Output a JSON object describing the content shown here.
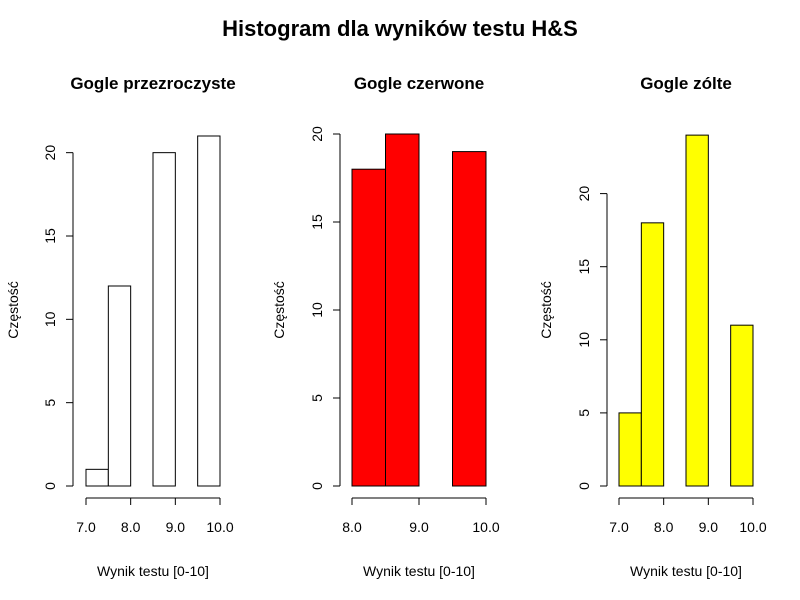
{
  "title": "Histogram dla wyników testu H&S",
  "chart_data": [
    {
      "type": "bar",
      "title": "Gogle przezroczyste",
      "xlabel": "Wynik testu [0-10]",
      "ylabel": "Częstość",
      "fill": "#ffffff",
      "bins": [
        [
          7.0,
          7.5
        ],
        [
          7.5,
          8.0
        ],
        [
          8.0,
          8.5
        ],
        [
          8.5,
          9.0
        ],
        [
          9.0,
          9.5
        ],
        [
          9.5,
          10.0
        ]
      ],
      "values": [
        1,
        12,
        0,
        20,
        0,
        21
      ],
      "xlim": [
        7.0,
        10.0
      ],
      "ylim": [
        0,
        21
      ],
      "x_ticks": [
        7.0,
        8.0,
        9.0,
        10.0
      ],
      "x_tick_labels": [
        "7.0",
        "8.0",
        "9.0",
        "10.0"
      ],
      "y_ticks": [
        0,
        5,
        10,
        15,
        20
      ],
      "grid": false
    },
    {
      "type": "bar",
      "title": "Gogle czerwone",
      "xlabel": "Wynik testu [0-10]",
      "ylabel": "Częstość",
      "fill": "#ff0000",
      "bins": [
        [
          8.0,
          8.5
        ],
        [
          8.5,
          9.0
        ],
        [
          9.0,
          9.5
        ],
        [
          9.5,
          10.0
        ]
      ],
      "values": [
        18,
        20,
        0,
        19
      ],
      "xlim": [
        8.0,
        10.0
      ],
      "ylim": [
        0,
        20
      ],
      "x_ticks": [
        8.0,
        9.0,
        10.0
      ],
      "x_tick_labels": [
        "8.0",
        "9.0",
        "10.0"
      ],
      "y_ticks": [
        0,
        5,
        10,
        15,
        20
      ],
      "grid": false
    },
    {
      "type": "bar",
      "title": "Gogle zólte",
      "xlabel": "Wynik testu [0-10]",
      "ylabel": "Częstość",
      "fill": "#ffff00",
      "bins": [
        [
          7.0,
          7.5
        ],
        [
          7.5,
          8.0
        ],
        [
          8.0,
          8.5
        ],
        [
          8.5,
          9.0
        ],
        [
          9.0,
          9.5
        ],
        [
          9.5,
          10.0
        ]
      ],
      "values": [
        5,
        18,
        0,
        24,
        0,
        11
      ],
      "xlim": [
        7.0,
        10.0
      ],
      "ylim": [
        0,
        24
      ],
      "x_ticks": [
        7.0,
        8.0,
        9.0,
        10.0
      ],
      "x_tick_labels": [
        "7.0",
        "8.0",
        "9.0",
        "10.0"
      ],
      "y_ticks": [
        0,
        5,
        10,
        15,
        20
      ],
      "grid": false
    }
  ]
}
